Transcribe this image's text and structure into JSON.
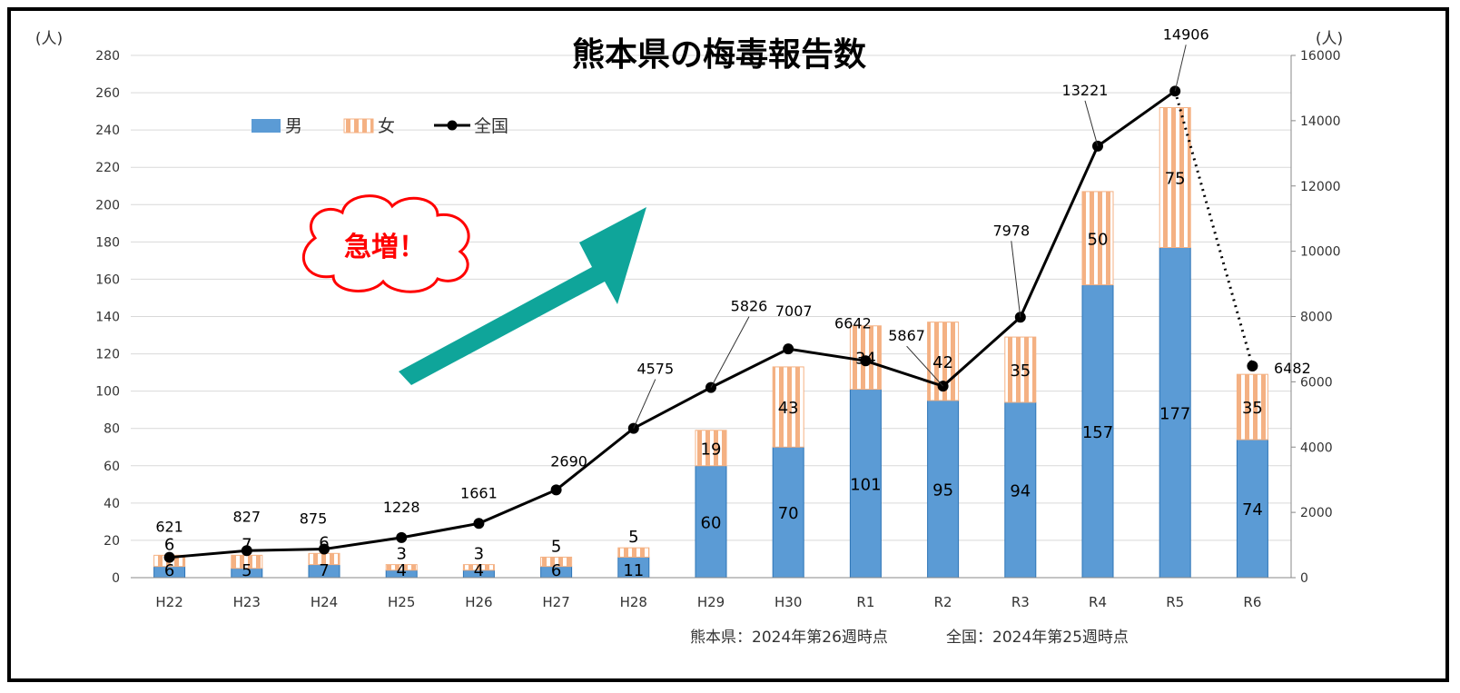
{
  "chart_data": {
    "type": "bar",
    "title": "熊本県の梅毒報告数",
    "categories": [
      "H22",
      "H23",
      "H24",
      "H25",
      "H26",
      "H27",
      "H28",
      "H29",
      "H30",
      "R1",
      "R2",
      "R3",
      "R4",
      "R5",
      "R6"
    ],
    "series": [
      {
        "name": "男",
        "kind": "stacked-bar",
        "axis": "left",
        "color": "#5b9bd5",
        "values": [
          6,
          5,
          7,
          4,
          4,
          6,
          11,
          60,
          70,
          101,
          95,
          94,
          157,
          177,
          74
        ]
      },
      {
        "name": "女",
        "kind": "stacked-bar",
        "axis": "left",
        "color": "#f4b183",
        "pattern": "vertical-stripes",
        "values": [
          6,
          7,
          6,
          3,
          3,
          5,
          5,
          19,
          43,
          34,
          42,
          35,
          50,
          75,
          35
        ]
      },
      {
        "name": "全国",
        "kind": "line",
        "axis": "right",
        "color": "#000000",
        "values": [
          621,
          827,
          875,
          1228,
          1661,
          2690,
          4575,
          5826,
          7007,
          6642,
          5867,
          7978,
          13221,
          14906,
          6482
        ]
      }
    ],
    "y_left": {
      "unit": "(人)",
      "min": 0,
      "max": 280,
      "step": 20
    },
    "y_right": {
      "unit": "(人)",
      "min": 0,
      "max": 16000,
      "step": 2000
    },
    "legend": {
      "placement": "top-left",
      "items": [
        "男",
        "女",
        "全国"
      ]
    },
    "annotations": {
      "callout": "急増！",
      "arrow_color": "#0fa59a",
      "footnote_kumamoto": "熊本県：2024年第26週時点",
      "footnote_national": "全国：2024年第25週時点"
    }
  }
}
